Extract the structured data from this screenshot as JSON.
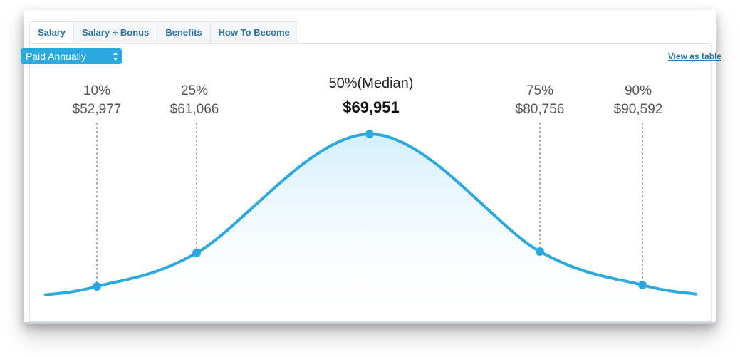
{
  "tabs": [
    {
      "label": "Salary"
    },
    {
      "label": "Salary + Bonus"
    },
    {
      "label": "Benefits"
    },
    {
      "label": "How To Become"
    }
  ],
  "pay_period": {
    "selected": "Paid Annually"
  },
  "view_table_link": "View as table",
  "colors": {
    "curve": "#2aa9e0",
    "link": "#2b74a5",
    "text": "#555555",
    "dashed": "#777777"
  },
  "chart_data": {
    "type": "line",
    "title": "",
    "xlabel": "",
    "ylabel": "",
    "points": [
      {
        "percentile": "10%",
        "value": "$52,977",
        "salary": 52977
      },
      {
        "percentile": "25%",
        "value": "$61,066",
        "salary": 61066
      },
      {
        "percentile": "50%(Median)",
        "value": "$69,951",
        "salary": 69951,
        "median": true
      },
      {
        "percentile": "75%",
        "value": "$80,756",
        "salary": 80756
      },
      {
        "percentile": "90%",
        "value": "$90,592",
        "salary": 90592
      }
    ]
  }
}
